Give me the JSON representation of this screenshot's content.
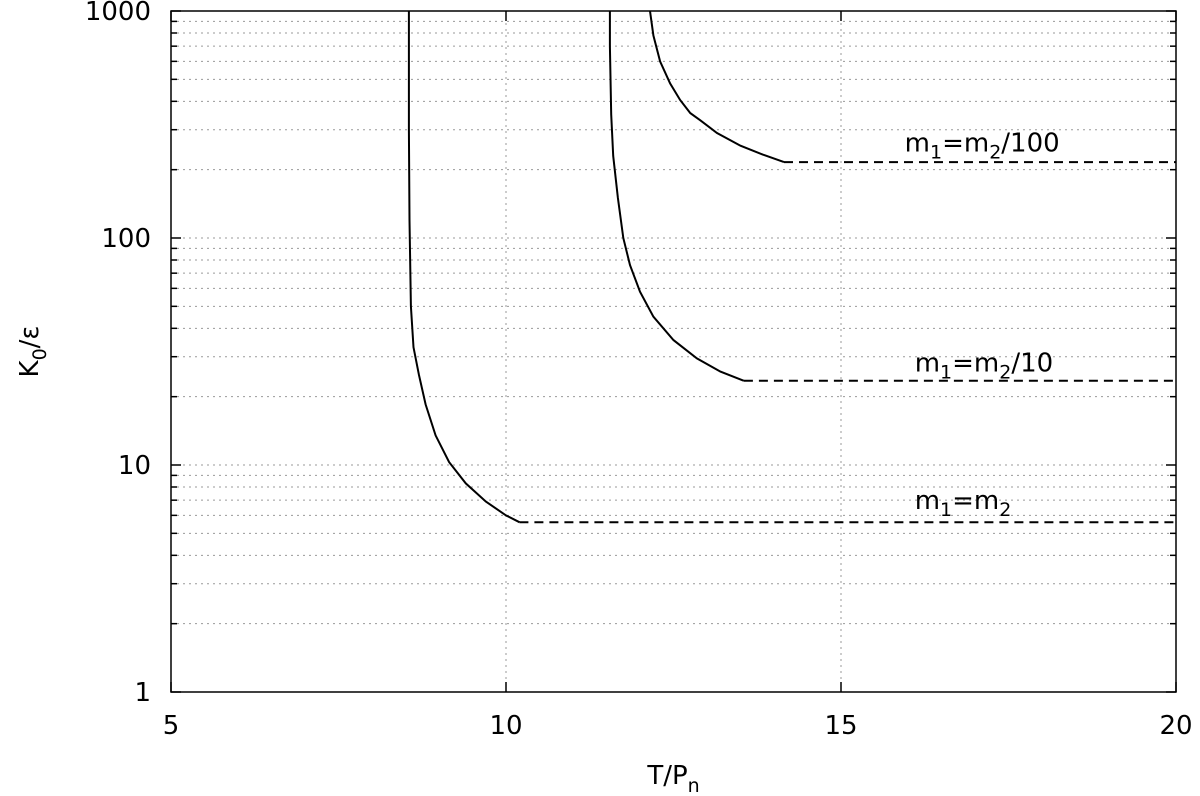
{
  "chart_data": {
    "type": "line",
    "title": "",
    "xlabel": {
      "main": "T/P",
      "sub": "n"
    },
    "ylabel": {
      "main": "K",
      "sub": "0",
      "rest": "/ε"
    },
    "xlim": [
      5,
      20
    ],
    "ylim": [
      1,
      1000
    ],
    "yscale": "log",
    "grid": true,
    "legend": "none",
    "x_ticks": [
      {
        "value": 5,
        "label": "5"
      },
      {
        "value": 10,
        "label": "10"
      },
      {
        "value": 15,
        "label": "15"
      },
      {
        "value": 20,
        "label": "20"
      }
    ],
    "y_ticks": [
      {
        "value": 1,
        "label": "1"
      },
      {
        "value": 10,
        "label": "10"
      },
      {
        "value": 100,
        "label": "100"
      },
      {
        "value": 1000,
        "label": "1000"
      }
    ],
    "series": [
      {
        "label": {
          "p1": "m",
          "s1": "1",
          "p2": "=m",
          "s2": "2",
          "p3": ""
        },
        "label_pos": [
          16.1,
          6.4
        ],
        "curve": [
          [
            8.55,
            1000
          ],
          [
            8.55,
            300
          ],
          [
            8.56,
            120
          ],
          [
            8.58,
            50
          ],
          [
            8.62,
            33
          ],
          [
            8.7,
            25
          ],
          [
            8.8,
            18.5
          ],
          [
            8.95,
            13.5
          ],
          [
            9.15,
            10.3
          ],
          [
            9.4,
            8.3
          ],
          [
            9.7,
            6.9
          ],
          [
            10.0,
            6.0
          ],
          [
            10.2,
            5.6
          ]
        ],
        "plateau": [
          [
            10.2,
            5.6
          ],
          [
            20,
            5.6
          ]
        ]
      },
      {
        "label": {
          "p1": "m",
          "s1": "1",
          "p2": "=m",
          "s2": "2",
          "p3": "/10"
        },
        "label_pos": [
          16.1,
          25.8
        ],
        "curve": [
          [
            11.55,
            1000
          ],
          [
            11.55,
            700
          ],
          [
            11.57,
            350
          ],
          [
            11.6,
            230
          ],
          [
            11.67,
            150
          ],
          [
            11.75,
            100
          ],
          [
            11.85,
            76
          ],
          [
            12.0,
            58
          ],
          [
            12.2,
            45
          ],
          [
            12.5,
            35.5
          ],
          [
            12.85,
            29.5
          ],
          [
            13.2,
            25.8
          ],
          [
            13.55,
            23.5
          ]
        ],
        "plateau": [
          [
            13.55,
            23.5
          ],
          [
            20,
            23.5
          ]
        ]
      },
      {
        "label": {
          "p1": "m",
          "s1": "1",
          "p2": "=m",
          "s2": "2",
          "p3": "/100"
        },
        "label_pos": [
          15.95,
          240
        ],
        "curve": [
          [
            12.15,
            1000
          ],
          [
            12.2,
            780
          ],
          [
            12.3,
            600
          ],
          [
            12.45,
            480
          ],
          [
            12.6,
            405
          ],
          [
            12.75,
            355
          ],
          [
            12.9,
            330
          ],
          [
            13.15,
            290
          ],
          [
            13.5,
            255
          ],
          [
            13.85,
            232
          ],
          [
            14.15,
            216
          ]
        ],
        "plateau": [
          [
            14.15,
            216
          ],
          [
            20,
            216
          ]
        ]
      }
    ]
  }
}
